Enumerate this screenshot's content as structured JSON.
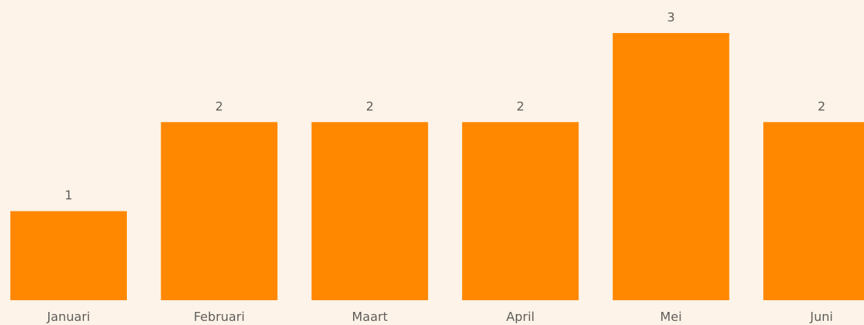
{
  "chart_data": {
    "type": "bar",
    "categories": [
      "Januari",
      "Februari",
      "Maart",
      "April",
      "Mei",
      "Juni"
    ],
    "values": [
      1,
      2,
      2,
      2,
      3,
      2
    ],
    "color": "#ff8800"
  }
}
